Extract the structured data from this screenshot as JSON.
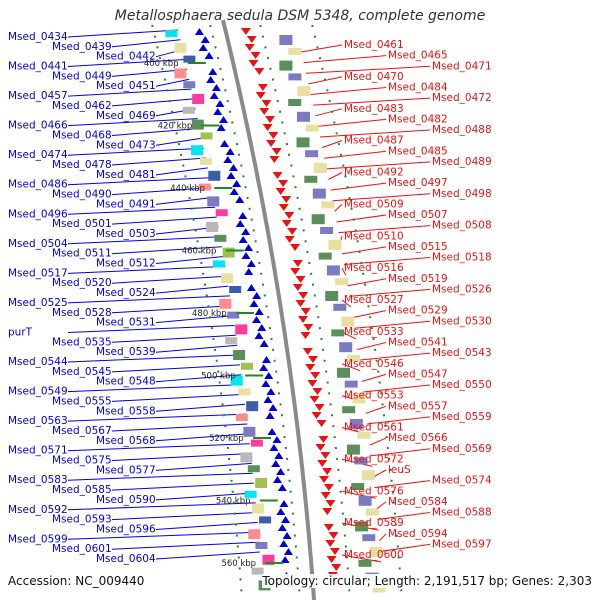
{
  "title": "Metallosphaera sedula DSM 5348, complete genome",
  "accession": "Accession: NC_009440",
  "summary": "Topology: circular; Length: 2,191,517 bp; Genes: 2,303",
  "colors": {
    "forward_strand": "#0000dd",
    "reverse_strand": "#ee1111",
    "backbone": "#8a8a8a",
    "tick": "#228822",
    "feature_palette": [
      "#00e5ee",
      "#3a5fa8",
      "#7b7bc4",
      "#b8b8b8",
      "#a0c050",
      "#e8e0a0",
      "#ff8c8c",
      "#ff3aa0",
      "#5a8f5a"
    ]
  },
  "scale_ticks": [
    "400 kbp",
    "420 kbp",
    "440 kbp",
    "460 kbp",
    "480 kbp",
    "500 kbp",
    "520 kbp",
    "540 kbp",
    "560 kbp"
  ],
  "forward_genes": [
    "Msed_0434",
    "Msed_0439",
    "Msed_0442",
    "Msed_0441",
    "Msed_0449",
    "Msed_0451",
    "Msed_0457",
    "Msed_0462",
    "Msed_0469",
    "Msed_0466",
    "Msed_0468",
    "Msed_0473",
    "Msed_0474",
    "Msed_0478",
    "Msed_0481",
    "Msed_0486",
    "Msed_0490",
    "Msed_0491",
    "Msed_0496",
    "Msed_0501",
    "Msed_0503",
    "Msed_0504",
    "Msed_0511",
    "Msed_0512",
    "Msed_0517",
    "Msed_0520",
    "Msed_0524",
    "Msed_0525",
    "Msed_0528",
    "Msed_0531",
    "purT",
    "Msed_0535",
    "Msed_0539",
    "Msed_0544",
    "Msed_0545",
    "Msed_0548",
    "Msed_0549",
    "Msed_0555",
    "Msed_0558",
    "Msed_0563",
    "Msed_0567",
    "Msed_0568",
    "Msed_0571",
    "Msed_0575",
    "Msed_0577",
    "Msed_0583",
    "Msed_0585",
    "Msed_0590",
    "Msed_0592",
    "Msed_0593",
    "Msed_0596",
    "Msed_0599",
    "Msed_0601",
    "Msed_0604"
  ],
  "reverse_genes": [
    "Msed_0461",
    "Msed_0465",
    "Msed_0471",
    "Msed_0470",
    "Msed_0484",
    "Msed_0472",
    "Msed_0483",
    "Msed_0482",
    "Msed_0488",
    "Msed_0487",
    "Msed_0485",
    "Msed_0489",
    "Msed_0492",
    "Msed_0497",
    "Msed_0498",
    "Msed_0509",
    "Msed_0507",
    "Msed_0508",
    "Msed_0510",
    "Msed_0515",
    "Msed_0518",
    "Msed_0516",
    "Msed_0519",
    "Msed_0526",
    "Msed_0527",
    "Msed_0529",
    "Msed_0530",
    "Msed_0533",
    "Msed_0541",
    "Msed_0543",
    "Msed_0546",
    "Msed_0547",
    "Msed_0550",
    "Msed_0553",
    "Msed_0557",
    "Msed_0559",
    "Msed_0561",
    "Msed_0566",
    "Msed_0569",
    "Msed_0572",
    "leuS",
    "Msed_0574",
    "Msed_0576",
    "Msed_0584",
    "Msed_0588",
    "Msed_0589",
    "Msed_0594",
    "Msed_0597",
    "Msed_0600"
  ]
}
